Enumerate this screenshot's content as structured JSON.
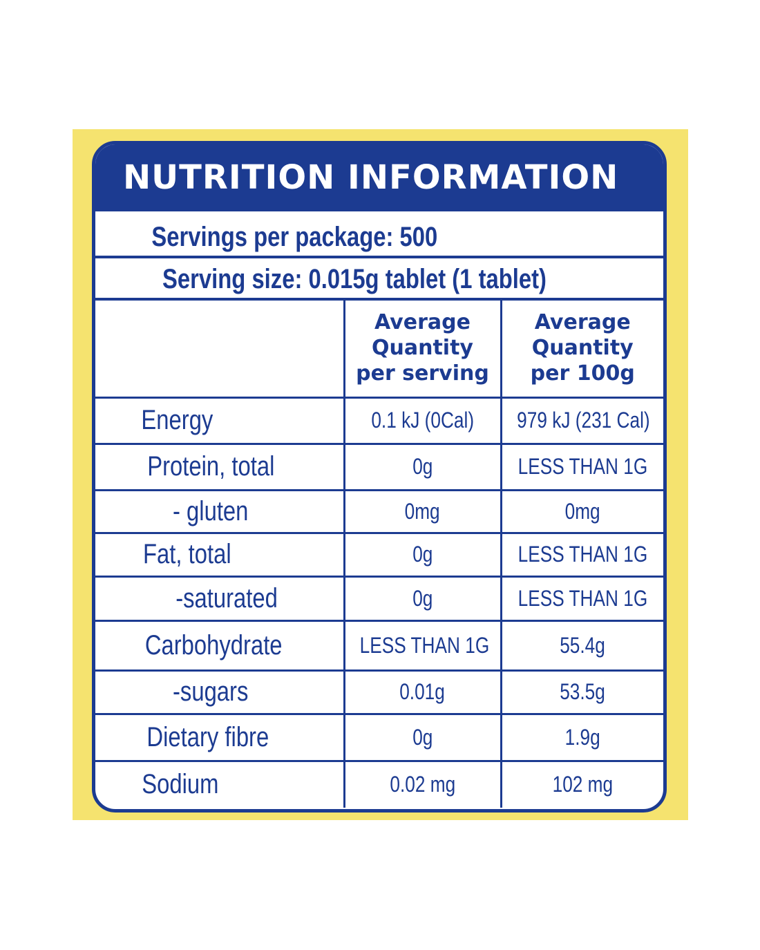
{
  "title": "NUTRITION INFORMATION",
  "servings_per_package": "Servings per package: 500",
  "serving_size": "Serving size: 0.015g tablet (1 tablet)",
  "columns": {
    "per_serving_l1": "Average",
    "per_serving_l2": "Quantity",
    "per_serving_l3": "per serving",
    "per_100g_l1": "Average",
    "per_100g_l2": "Quantity",
    "per_100g_l3": "per 100g"
  },
  "rows": [
    {
      "label": "Energy",
      "per_serving": "0.1 kJ (0Cal)",
      "per_100g": "979 kJ (231 Cal)"
    },
    {
      "label": "Protein, total",
      "per_serving": "0g",
      "per_100g": "LESS THAN 1G"
    },
    {
      "label": "- gluten",
      "per_serving": "0mg",
      "per_100g": "0mg"
    },
    {
      "label": "Fat, total",
      "per_serving": "0g",
      "per_100g": "LESS THAN 1G"
    },
    {
      "label": "-saturated",
      "per_serving": "0g",
      "per_100g": "LESS THAN 1G"
    },
    {
      "label": "Carbohydrate",
      "per_serving": "LESS THAN 1G",
      "per_100g": "55.4g"
    },
    {
      "label": "-sugars",
      "per_serving": "0.01g",
      "per_100g": "53.5g"
    },
    {
      "label": "Dietary fibre",
      "per_serving": "0g",
      "per_100g": "1.9g"
    },
    {
      "label": "Sodium",
      "per_serving": "0.02 mg",
      "per_100g": "102 mg"
    }
  ],
  "colors": {
    "primary": "#1c3b91",
    "background": "#f5e36f"
  }
}
